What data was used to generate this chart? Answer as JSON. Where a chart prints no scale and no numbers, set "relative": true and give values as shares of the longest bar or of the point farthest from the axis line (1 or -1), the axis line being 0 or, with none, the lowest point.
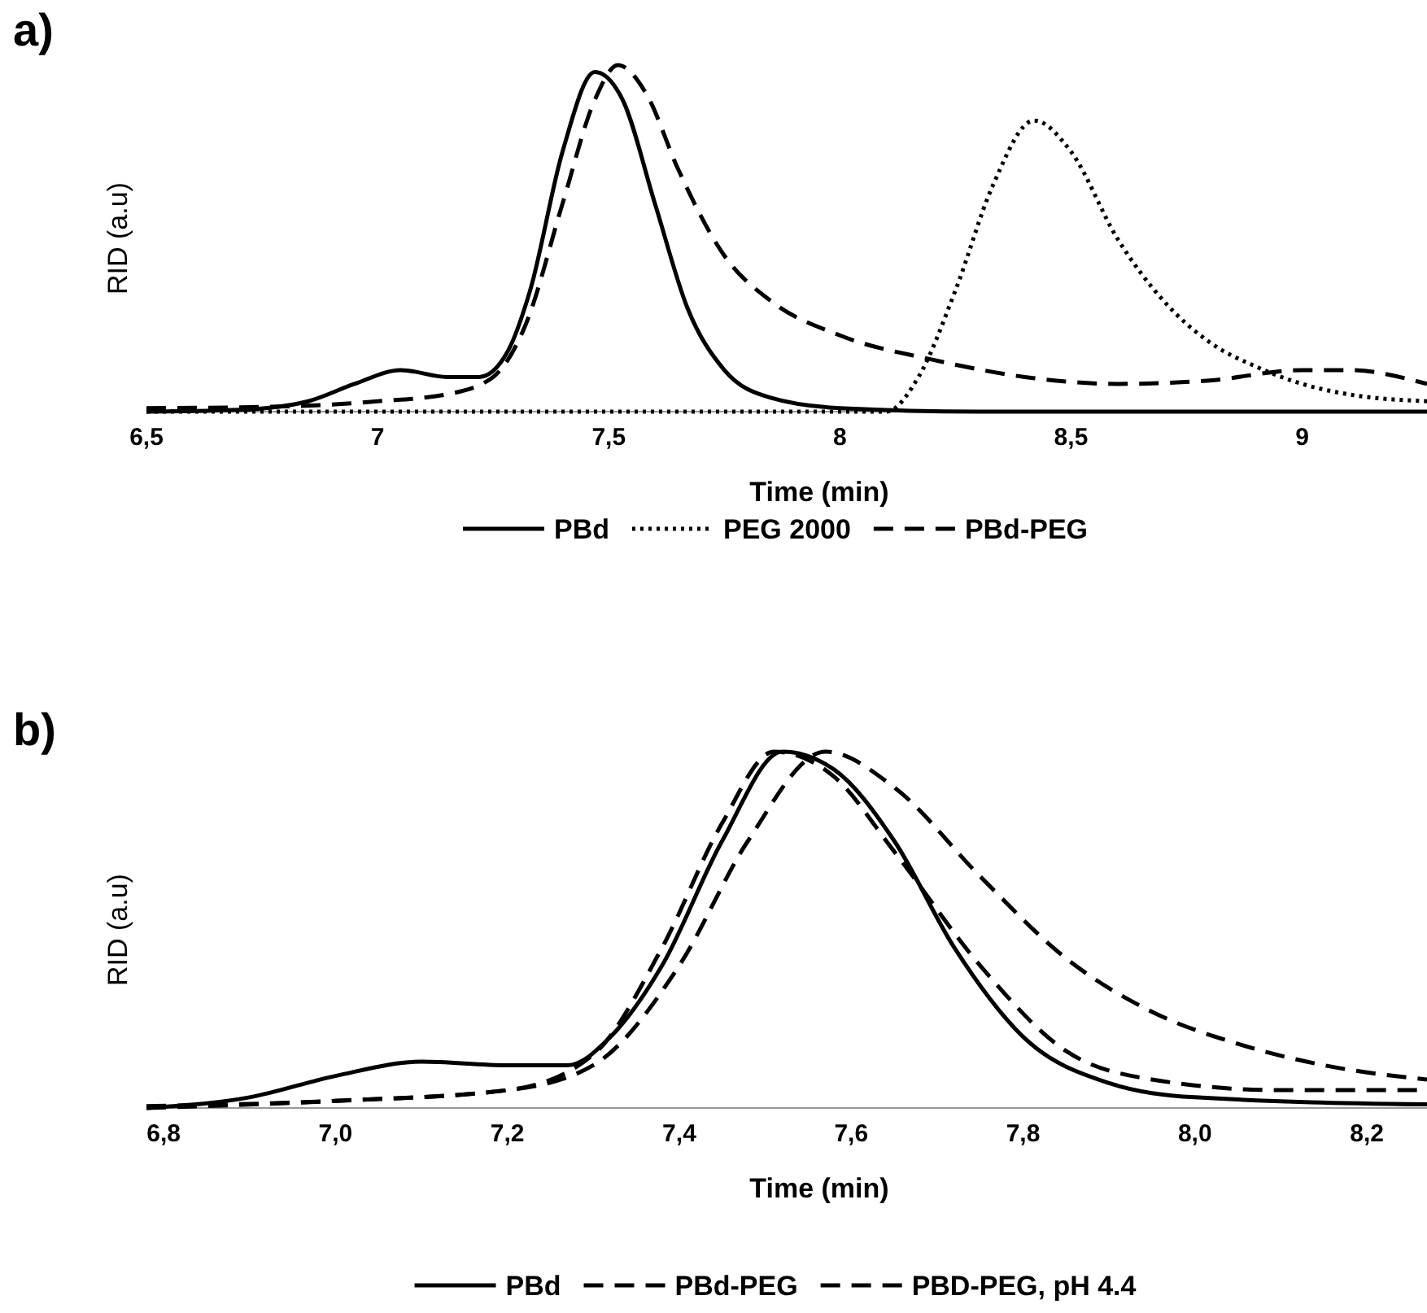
{
  "chart_data": [
    {
      "type": "line",
      "title": "a)",
      "xlabel": "Time (min)",
      "ylabel": "RID (a.u)",
      "relative": true,
      "legend": "bottom",
      "xlim": [
        6.5,
        9.27
      ],
      "xticks": [
        {
          "value": 6.5,
          "label": "6,5"
        },
        7,
        {
          "value": 7.5,
          "label": "7,5"
        },
        8,
        {
          "value": 8.5,
          "label": "8,5"
        },
        9
      ],
      "series": [
        {
          "name": "PBd",
          "color": "#000000",
          "line_style": "solid",
          "x": [
            6.5,
            6.7,
            6.85,
            6.95,
            7.05,
            7.15,
            7.22,
            7.28,
            7.33,
            7.4,
            7.47,
            7.53,
            7.6,
            7.67,
            7.75,
            7.85,
            8.0,
            8.3,
            9.27
          ],
          "values": [
            0,
            0.005,
            0.03,
            0.08,
            0.12,
            0.1,
            0.1,
            0.17,
            0.35,
            0.75,
            0.98,
            0.9,
            0.6,
            0.3,
            0.12,
            0.04,
            0.01,
            0,
            0
          ]
        },
        {
          "name": "PEG 2000",
          "color": "#000000",
          "line_style": "dotted",
          "x": [
            6.5,
            8.1,
            8.17,
            8.25,
            8.33,
            8.42,
            8.5,
            8.6,
            8.7,
            8.8,
            8.9,
            9.0,
            9.1,
            9.27
          ],
          "values": [
            0,
            0,
            0.1,
            0.35,
            0.65,
            0.84,
            0.75,
            0.5,
            0.32,
            0.2,
            0.13,
            0.08,
            0.05,
            0.03
          ]
        },
        {
          "name": "PBd-PEG",
          "color": "#000000",
          "line_style": "dashed",
          "x": [
            6.5,
            6.8,
            7.0,
            7.15,
            7.25,
            7.32,
            7.4,
            7.47,
            7.52,
            7.58,
            7.65,
            7.75,
            7.85,
            8.0,
            8.2,
            8.4,
            8.6,
            8.8,
            9.0,
            9.1,
            9.27
          ],
          "values": [
            0.01,
            0.015,
            0.03,
            0.05,
            0.1,
            0.25,
            0.6,
            0.9,
            1,
            0.92,
            0.7,
            0.45,
            0.32,
            0.22,
            0.15,
            0.1,
            0.08,
            0.09,
            0.12,
            0.12,
            0.08
          ]
        }
      ]
    },
    {
      "type": "line",
      "title": "b)",
      "xlabel": "Time (min)",
      "ylabel": "RID (a.u)",
      "relative": true,
      "legend": "bottom",
      "xlim": [
        6.78,
        8.27
      ],
      "xticks": [
        {
          "value": 6.8,
          "label": "6,8"
        },
        {
          "value": 7.0,
          "label": "7,0"
        },
        {
          "value": 7.2,
          "label": "7,2"
        },
        {
          "value": 7.4,
          "label": "7,4"
        },
        {
          "value": 7.6,
          "label": "7,6"
        },
        {
          "value": 7.8,
          "label": "7,8"
        },
        {
          "value": 8.0,
          "label": "8,0"
        },
        {
          "value": 8.2,
          "label": "8,2"
        }
      ],
      "series": [
        {
          "name": "PBd",
          "color": "#000000",
          "line_style": "solid",
          "x": [
            6.78,
            6.9,
            7.0,
            7.1,
            7.2,
            7.27,
            7.32,
            7.38,
            7.45,
            7.52,
            7.58,
            7.65,
            7.72,
            7.8,
            7.9,
            8.0,
            8.27
          ],
          "values": [
            0,
            0.03,
            0.09,
            0.13,
            0.12,
            0.12,
            0.2,
            0.4,
            0.75,
            1,
            0.95,
            0.75,
            0.45,
            0.2,
            0.07,
            0.03,
            0.01
          ]
        },
        {
          "name": "PBd-PEG",
          "color": "#000000",
          "line_style": "dashed",
          "x": [
            6.78,
            7.0,
            7.2,
            7.3,
            7.4,
            7.48,
            7.57,
            7.65,
            7.75,
            7.85,
            7.95,
            8.05,
            8.15,
            8.27
          ],
          "values": [
            0.005,
            0.02,
            0.05,
            0.12,
            0.4,
            0.75,
            1,
            0.9,
            0.65,
            0.42,
            0.27,
            0.18,
            0.12,
            0.08
          ]
        },
        {
          "name": "PBD-PEG, pH 4.4",
          "color": "#000000",
          "line_style": "dashed",
          "x": [
            6.78,
            7.0,
            7.2,
            7.3,
            7.38,
            7.45,
            7.51,
            7.58,
            7.65,
            7.75,
            7.85,
            7.95,
            8.1,
            8.27
          ],
          "values": [
            0,
            0.02,
            0.05,
            0.15,
            0.45,
            0.8,
            1,
            0.93,
            0.72,
            0.4,
            0.16,
            0.08,
            0.05,
            0.05
          ]
        }
      ]
    }
  ]
}
